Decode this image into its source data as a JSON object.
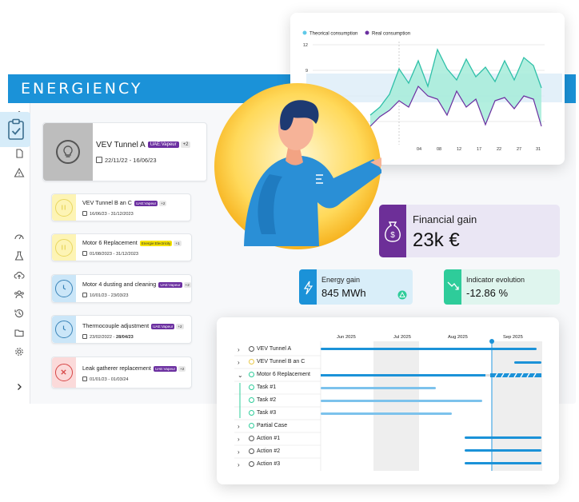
{
  "app": {
    "logo": "ENERGIENCY",
    "colors": {
      "brand": "#1b92d8",
      "purple": "#6d2f98",
      "green": "#2ecc9a"
    }
  },
  "sidebar": {
    "icons": [
      "home-icon",
      "bar-chart-icon",
      "document-icon",
      "warning-icon",
      "clipboard-check-icon",
      "gauge-icon",
      "flask-icon",
      "cloud-upload-icon",
      "users-icon",
      "history-icon",
      "folder-icon",
      "settings-icon",
      "chevron-right-icon"
    ]
  },
  "projects": {
    "main": {
      "title": "VEV Tunnel A",
      "tag": "UAE:Vapeur",
      "plus": "+2",
      "dates": "22/11/22 - 16/06/23"
    },
    "items": [
      {
        "title": "VEV Tunnel B an C",
        "tag": "UAE:Vapeur",
        "plus": "+2",
        "dates": "16/06/23 - 31/12/2023",
        "status": "paused"
      },
      {
        "title": "Motor 6 Replacement",
        "tag": "Energie:Electricity",
        "plus": "+1",
        "dates": "01/08/2023 - 31/12/2023",
        "status": "paused"
      },
      {
        "title": "Motor 4 dusting and cleaning",
        "tag": "UAE:Vapeur",
        "plus": "+2",
        "dates": "10/01/23 - 23/03/23",
        "status": "scheduled"
      },
      {
        "title": "Thermocouple adjustment",
        "tag": "UAE:Vapeur",
        "plus": "+2",
        "dates_start": "23/02/2022 - ",
        "dates_end": "28/04/23",
        "status": "scheduled"
      },
      {
        "title": "Leak gatherer replacement",
        "tag": "UAE:Vapeur",
        "plus": "+2",
        "dates": "01/01/23 - 01/03/24",
        "status": "cancelled"
      }
    ]
  },
  "chart_data": {
    "type": "area",
    "legend": [
      "Theorical consumption",
      "Real consumption"
    ],
    "legend_position": "top-left",
    "series_colors": [
      "#5fc9e8",
      "#6b2fa0"
    ],
    "yticks": [
      "12",
      "9"
    ],
    "xticks": [
      "04",
      "08",
      "12",
      "17",
      "22",
      "27",
      "31"
    ],
    "grid": true
  },
  "kpis": {
    "financial": {
      "label": "Financial gain",
      "value": "23k €"
    },
    "energy": {
      "label": "Energy gain",
      "value": "845 MWh"
    },
    "indicator": {
      "label": "Indicator evolution",
      "value": "-12.86 %"
    }
  },
  "gantt": {
    "months": [
      "Jun 2025",
      "Jul 2025",
      "Aug 2025",
      "Sep 2025"
    ],
    "rows": [
      {
        "label": "VEV Tunnel A",
        "chevron": "›"
      },
      {
        "label": "VEV Tunnel B an C",
        "chevron": "›"
      },
      {
        "label": "Motor 6 Replacement",
        "chevron": "⌄"
      },
      {
        "label": "Task #1",
        "chevron": ""
      },
      {
        "label": "Task #2",
        "chevron": ""
      },
      {
        "label": "Task #3",
        "chevron": ""
      },
      {
        "label": "Partial Case",
        "chevron": "›"
      },
      {
        "label": "Action #1",
        "chevron": "›"
      },
      {
        "label": "Action #2",
        "chevron": "›"
      },
      {
        "label": "Action #3",
        "chevron": "›"
      }
    ]
  }
}
